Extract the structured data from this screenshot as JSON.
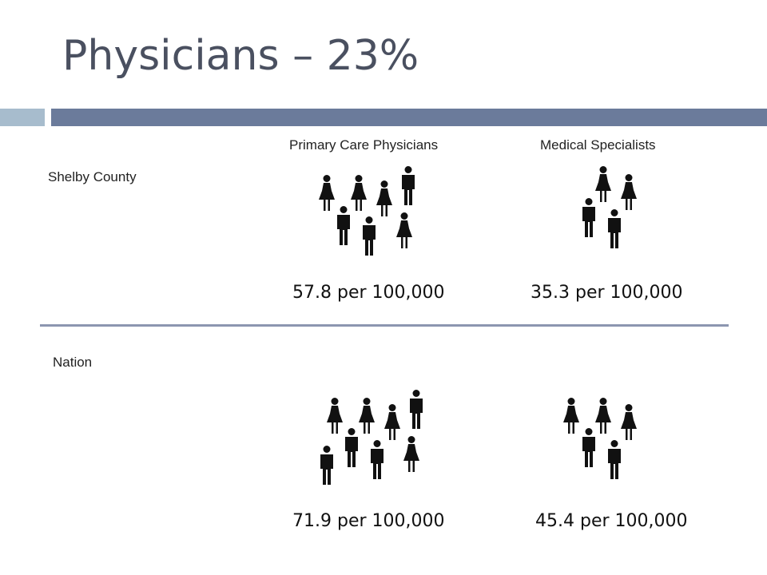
{
  "slide": {
    "title": "Physicians – 23%",
    "columns": {
      "primary_care": "Primary Care Physicians",
      "specialists": "Medical Specialists"
    },
    "rows": {
      "shelby": {
        "label": "Shelby County",
        "primary_rate": "57.8 per 100,000",
        "specialist_rate": "35.3 per 100,000"
      },
      "nation": {
        "label": "Nation",
        "primary_rate": "71.9 per 100,000",
        "specialist_rate": "45.4 per 100,000"
      }
    },
    "icons": {
      "female": "female-person-icon",
      "male": "male-person-icon"
    },
    "colors": {
      "accent_light": "#a7bccd",
      "accent_dark": "#6b7b9b",
      "divider": "#8c96b0",
      "title": "#4a5060"
    }
  }
}
